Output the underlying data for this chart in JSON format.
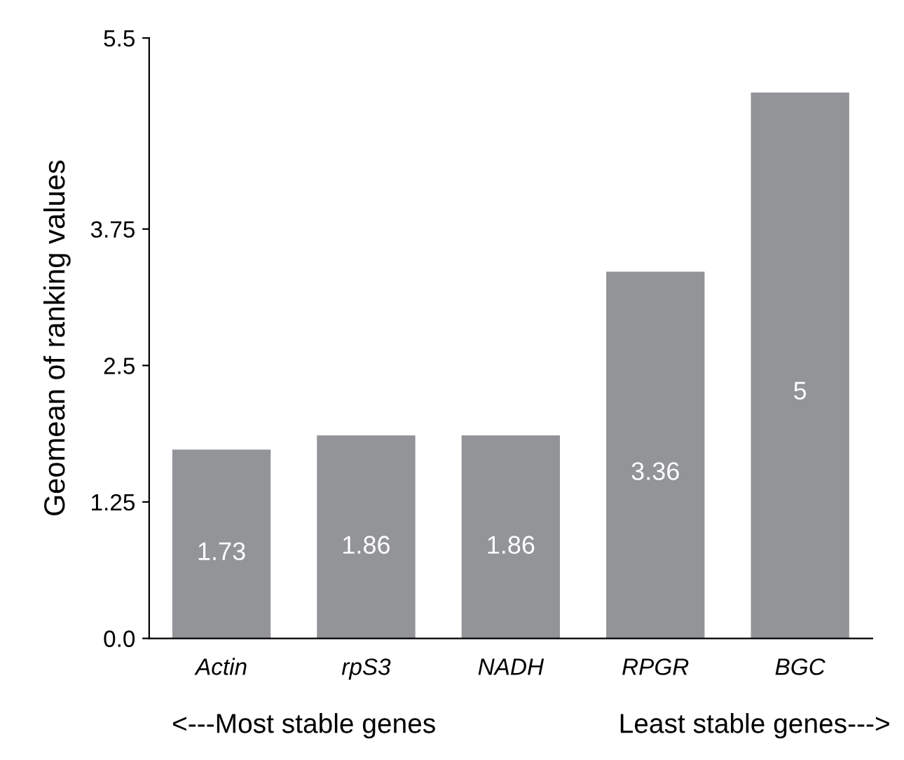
{
  "chart_data": {
    "type": "bar",
    "ylabel": "Geomean of ranking values",
    "categories": [
      "Actin",
      "rpS3",
      "NADH",
      "RPGR",
      "BGC"
    ],
    "values": [
      1.73,
      1.86,
      1.86,
      3.36,
      5
    ],
    "color": "#929497",
    "data_labels": true,
    "ylim": [
      0,
      5.5
    ],
    "yticks": [
      {
        "value": 0,
        "label": "0.0"
      },
      1.25,
      2.5,
      3.75,
      5.5
    ],
    "grid": false,
    "annotations": [
      "<---Most stable genes",
      "Least stable genes--->"
    ]
  }
}
